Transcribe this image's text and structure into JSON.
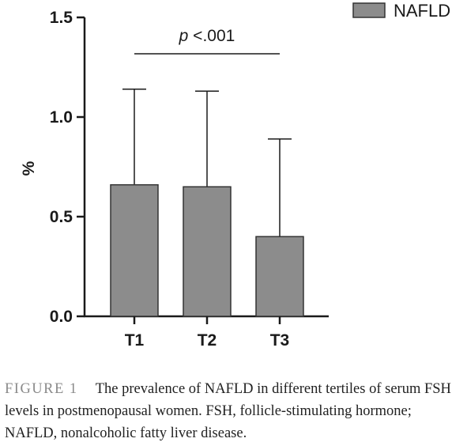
{
  "chart_data": {
    "type": "bar",
    "categories": [
      "T1",
      "T2",
      "T3"
    ],
    "series": [
      {
        "name": "NAFLD",
        "values": [
          0.66,
          0.65,
          0.4
        ],
        "error_upper": [
          1.14,
          1.13,
          0.89
        ],
        "color": "#8c8c8c"
      }
    ],
    "ylabel": "%",
    "xlabel": "",
    "ylim": [
      0,
      1.5
    ],
    "yticks": [
      "0.0",
      "0.5",
      "1.0",
      "1.5"
    ],
    "ytick_values": [
      0,
      0.5,
      1.0,
      1.5
    ],
    "legend": {
      "position": "top-right",
      "entries": [
        "NAFLD"
      ]
    },
    "annotation": {
      "prefix": "p",
      "text": " <.001",
      "spans": [
        "T1",
        "T3"
      ]
    },
    "grid": false
  },
  "caption": {
    "label": "FIGURE 1",
    "text": "The prevalence of NAFLD in different tertiles of serum FSH levels in postmenopausal women. FSH, follicle-stimulating hormone; NAFLD, nonalcoholic fatty liver disease."
  }
}
